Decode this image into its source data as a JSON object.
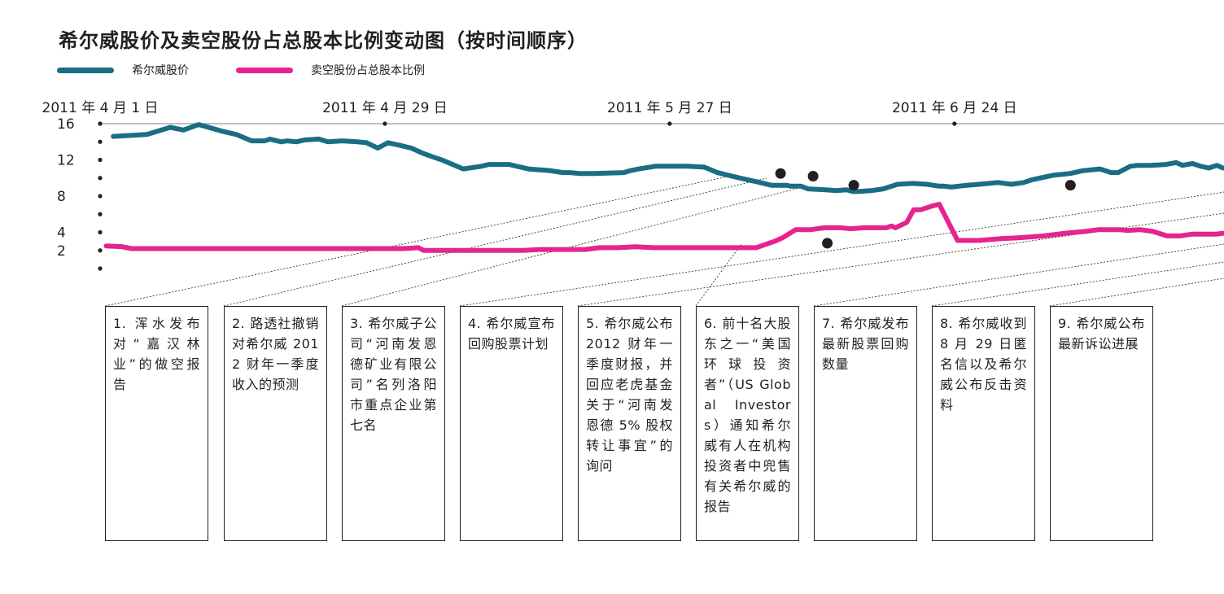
{
  "title": "希尔威股价及卖空股份占总股本比例变动图（按时间顺序）",
  "colors": {
    "stock": "#196e85",
    "short": "#e5248f",
    "axis": "#231f20",
    "grid": "#9a9a9a"
  },
  "legend": [
    {
      "label": "希尔威股价",
      "color": "#196e85"
    },
    {
      "label": "卖空股份占总股本比例",
      "color": "#e5248f"
    }
  ],
  "chart_data": {
    "type": "line",
    "title": "希尔威股价及卖空股份占总股本比例变动图（按时间顺序）",
    "x_unit": "day",
    "x_ticks": [
      {
        "x": 0,
        "label": "2011 年 4 月 1 日"
      },
      {
        "x": 28,
        "label": "2011 年 4 月 29 日"
      },
      {
        "x": 56,
        "label": "2011 年 5 月 27 日"
      },
      {
        "x": 84,
        "label": "2011 年 6 月 24 日"
      }
    ],
    "y_ticks": [
      {
        "y": 16,
        "label": "16"
      },
      {
        "y": 12,
        "label": "12"
      },
      {
        "y": 8,
        "label": "8"
      },
      {
        "y": 4,
        "label": "4"
      },
      {
        "y": 2,
        "label": "2"
      }
    ],
    "y_dots": [
      16,
      14,
      12,
      10,
      8,
      6,
      4,
      2,
      0
    ],
    "xlim": [
      0,
      110.5
    ],
    "ylim": [
      0,
      16
    ],
    "series": [
      {
        "name": "希尔威股价",
        "color": "#196e85",
        "x": [
          1.3,
          4.6,
          4.6,
          6.9,
          8.2,
          9.7,
          11.9,
          13.4,
          14.9,
          16.2,
          16.7,
          17.8,
          18.4,
          19.3,
          20.1,
          21.5,
          22.4,
          23.8,
          25.3,
          26.2,
          27.3,
          28.3,
          29.5,
          30.6,
          31.8,
          32.8,
          33.6,
          35.7,
          37.5,
          38.2,
          40.2,
          42.1,
          44.3,
          45.5,
          46.2,
          47.1,
          48.5,
          51.5,
          52.1,
          53.0,
          54.6,
          55.4,
          56.2,
          57.7,
          59.4,
          60.7,
          62.9,
          64.5,
          66.0,
          67.5,
          67.9,
          68.9,
          69.6,
          71.3,
          72.4,
          73.4,
          74.0,
          74.5,
          75.8,
          77.0,
          78.4,
          79.9,
          81.3,
          82.5,
          83.0,
          83.7,
          85.2,
          86.4,
          88.3,
          89.6,
          90.8,
          91.6,
          92.4,
          93.7,
          95.4,
          96.6,
          98.3,
          99.4,
          100.1,
          101.3,
          102.0,
          103.3,
          104.8,
          105.8,
          106.4,
          107.4,
          108.2,
          109.0,
          109.8,
          110.4
        ],
        "y": [
          14.6,
          14.8,
          14.8,
          15.6,
          15.3,
          15.9,
          15.2,
          14.8,
          14.1,
          14.1,
          14.3,
          14.0,
          14.1,
          14.0,
          14.2,
          14.3,
          14.0,
          14.1,
          14.0,
          13.9,
          13.3,
          13.9,
          13.6,
          13.3,
          12.7,
          12.3,
          12.0,
          11.0,
          11.3,
          11.5,
          11.5,
          11.0,
          10.8,
          10.6,
          10.6,
          10.5,
          10.5,
          10.6,
          10.8,
          11.0,
          11.3,
          11.3,
          11.3,
          11.3,
          11.2,
          10.6,
          10.0,
          9.6,
          9.2,
          9.2,
          9.1,
          9.1,
          8.8,
          8.7,
          8.6,
          8.7,
          8.5,
          8.5,
          8.6,
          8.8,
          9.3,
          9.4,
          9.3,
          9.1,
          9.1,
          9.0,
          9.2,
          9.3,
          9.5,
          9.3,
          9.5,
          9.8,
          10.0,
          10.3,
          10.5,
          10.8,
          11.0,
          10.6,
          10.6,
          11.3,
          11.4,
          11.4,
          11.5,
          11.7,
          11.4,
          11.6,
          11.3,
          11.1,
          11.4,
          11.1
        ]
      },
      {
        "name": "卖空股份占总股本比例",
        "color": "#e5248f",
        "x": [
          0.6,
          2.2,
          3.1,
          5.6,
          8.2,
          11.3,
          13.4,
          15.2,
          18.5,
          20.4,
          22.4,
          24.4,
          26.5,
          28.3,
          29.8,
          31.3,
          31.8,
          33.8,
          35.9,
          37.8,
          39.0,
          40.7,
          41.6,
          43.2,
          46.1,
          47.7,
          49.1,
          50.9,
          52.6,
          54.4,
          56.6,
          58.9,
          60.8,
          62.4,
          64.5,
          66.3,
          67.1,
          68.4,
          69.9,
          71.2,
          72.8,
          73.8,
          75.1,
          76.3,
          77.3,
          77.8,
          78.2,
          79.3,
          80.0,
          80.7,
          81.8,
          82.5,
          84.3,
          86.4,
          88.6,
          90.3,
          92.8,
          94.9,
          96.9,
          98.2,
          98.6,
          100.2,
          101.0,
          102.2,
          103.5,
          104.9,
          105.8,
          106.2,
          107.4,
          108.5,
          109.8,
          110.4
        ],
        "y": [
          2.5,
          2.4,
          2.2,
          2.2,
          2.2,
          2.2,
          2.2,
          2.2,
          2.2,
          2.2,
          2.2,
          2.2,
          2.2,
          2.2,
          2.2,
          2.3,
          2.0,
          2.0,
          2.0,
          2.0,
          2.0,
          2.0,
          2.0,
          2.1,
          2.1,
          2.1,
          2.3,
          2.3,
          2.4,
          2.3,
          2.3,
          2.3,
          2.3,
          2.3,
          2.3,
          3.0,
          3.4,
          4.3,
          4.3,
          4.5,
          4.5,
          4.4,
          4.5,
          4.5,
          4.5,
          4.7,
          4.5,
          5.1,
          6.5,
          6.5,
          6.9,
          7.1,
          3.1,
          3.1,
          3.3,
          3.4,
          3.6,
          3.9,
          4.1,
          4.3,
          4.3,
          4.3,
          4.2,
          4.3,
          4.1,
          3.6,
          3.6,
          3.6,
          3.8,
          3.8,
          3.8,
          3.9
        ]
      }
    ],
    "markers": [
      {
        "x": 66.9,
        "y": 10.5,
        "series": 0
      },
      {
        "x": 70.1,
        "y": 10.2,
        "series": 0
      },
      {
        "x": 74.1,
        "y": 9.2,
        "series": 0
      },
      {
        "x": 71.5,
        "y": 2.8,
        "series": 1
      },
      {
        "x": 95.4,
        "y": 9.2,
        "series": 0
      }
    ]
  },
  "events": [
    {
      "label": "1. 浑水发布对“嘉汉林业”的做空报告"
    },
    {
      "label": "2. 路透社撤销对希尔威 2012 财年一季度收入的预测"
    },
    {
      "label": "3. 希尔威子公司“河南发恩德矿业有限公司”名列洛阳市重点企业第七名"
    },
    {
      "label": "4. 希尔威宣布回购股票计划"
    },
    {
      "label": "5. 希尔威公布 2012 财年一季度财报，并回应老虎基金关于“河南发恩德 5% 股权转让事宜”的询问"
    },
    {
      "label": "6. 前十名大股东之一“美国环球投资者”（US Global Investors）通知希尔威有人在机构投资者中兜售有关希尔威的报告"
    },
    {
      "label": "7. 希尔威发布最新股票回购数量"
    },
    {
      "label": "8. 希尔威收到 8 月 29 日匿名信以及希尔威公布反击资料"
    },
    {
      "label": "9. 希尔威公布最新诉讼进展"
    }
  ]
}
